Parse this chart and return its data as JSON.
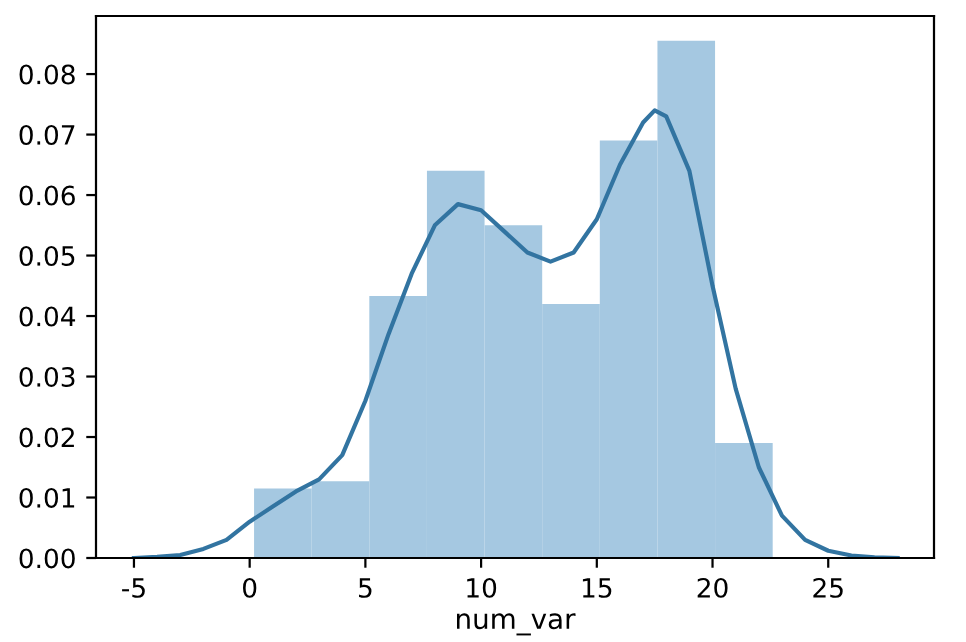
{
  "chart_data": {
    "type": "histogram",
    "xlabel": "num_var",
    "bins": [
      0.19,
      2.68,
      5.17,
      7.66,
      10.15,
      12.64,
      15.13,
      17.62,
      20.11,
      22.6
    ],
    "values": [
      0.0115,
      0.0127,
      0.0433,
      0.064,
      0.055,
      0.042,
      0.069,
      0.0855,
      0.019
    ],
    "color": "#a5c8e1",
    "series": [
      {
        "type": "line",
        "color": "#3274a1",
        "x": [
          -5,
          -4,
          -3,
          -2,
          -1,
          0,
          1,
          2,
          3,
          4,
          5,
          6,
          7,
          8,
          9,
          10,
          11,
          12,
          13,
          14,
          15,
          16,
          17,
          17.5,
          18,
          19,
          20,
          21,
          22,
          23,
          24,
          25,
          26,
          27,
          28
        ],
        "values": [
          0,
          0.0002,
          0.0005,
          0.0015,
          0.003,
          0.006,
          0.0085,
          0.011,
          0.013,
          0.017,
          0.026,
          0.037,
          0.047,
          0.055,
          0.0585,
          0.0575,
          0.054,
          0.0505,
          0.049,
          0.0505,
          0.056,
          0.065,
          0.072,
          0.074,
          0.073,
          0.064,
          0.045,
          0.028,
          0.015,
          0.007,
          0.003,
          0.0012,
          0.0004,
          0.0001,
          0
        ]
      }
    ],
    "xlim": [
      -6.64,
      29.57
    ],
    "ylim": [
      0,
      0.0896
    ],
    "xticks": [
      -5,
      0,
      5,
      10,
      15,
      20,
      25
    ],
    "yticks": [
      {
        "value": 0,
        "label": "0.00"
      },
      {
        "value": 0.01,
        "label": "0.01"
      },
      {
        "value": 0.02,
        "label": "0.02"
      },
      {
        "value": 0.03,
        "label": "0.03"
      },
      {
        "value": 0.04,
        "label": "0.04"
      },
      {
        "value": 0.05,
        "label": "0.05"
      },
      {
        "value": 0.06,
        "label": "0.06"
      },
      {
        "value": 0.07,
        "label": "0.07"
      },
      {
        "value": 0.08,
        "label": "0.08"
      }
    ],
    "grid": false
  }
}
